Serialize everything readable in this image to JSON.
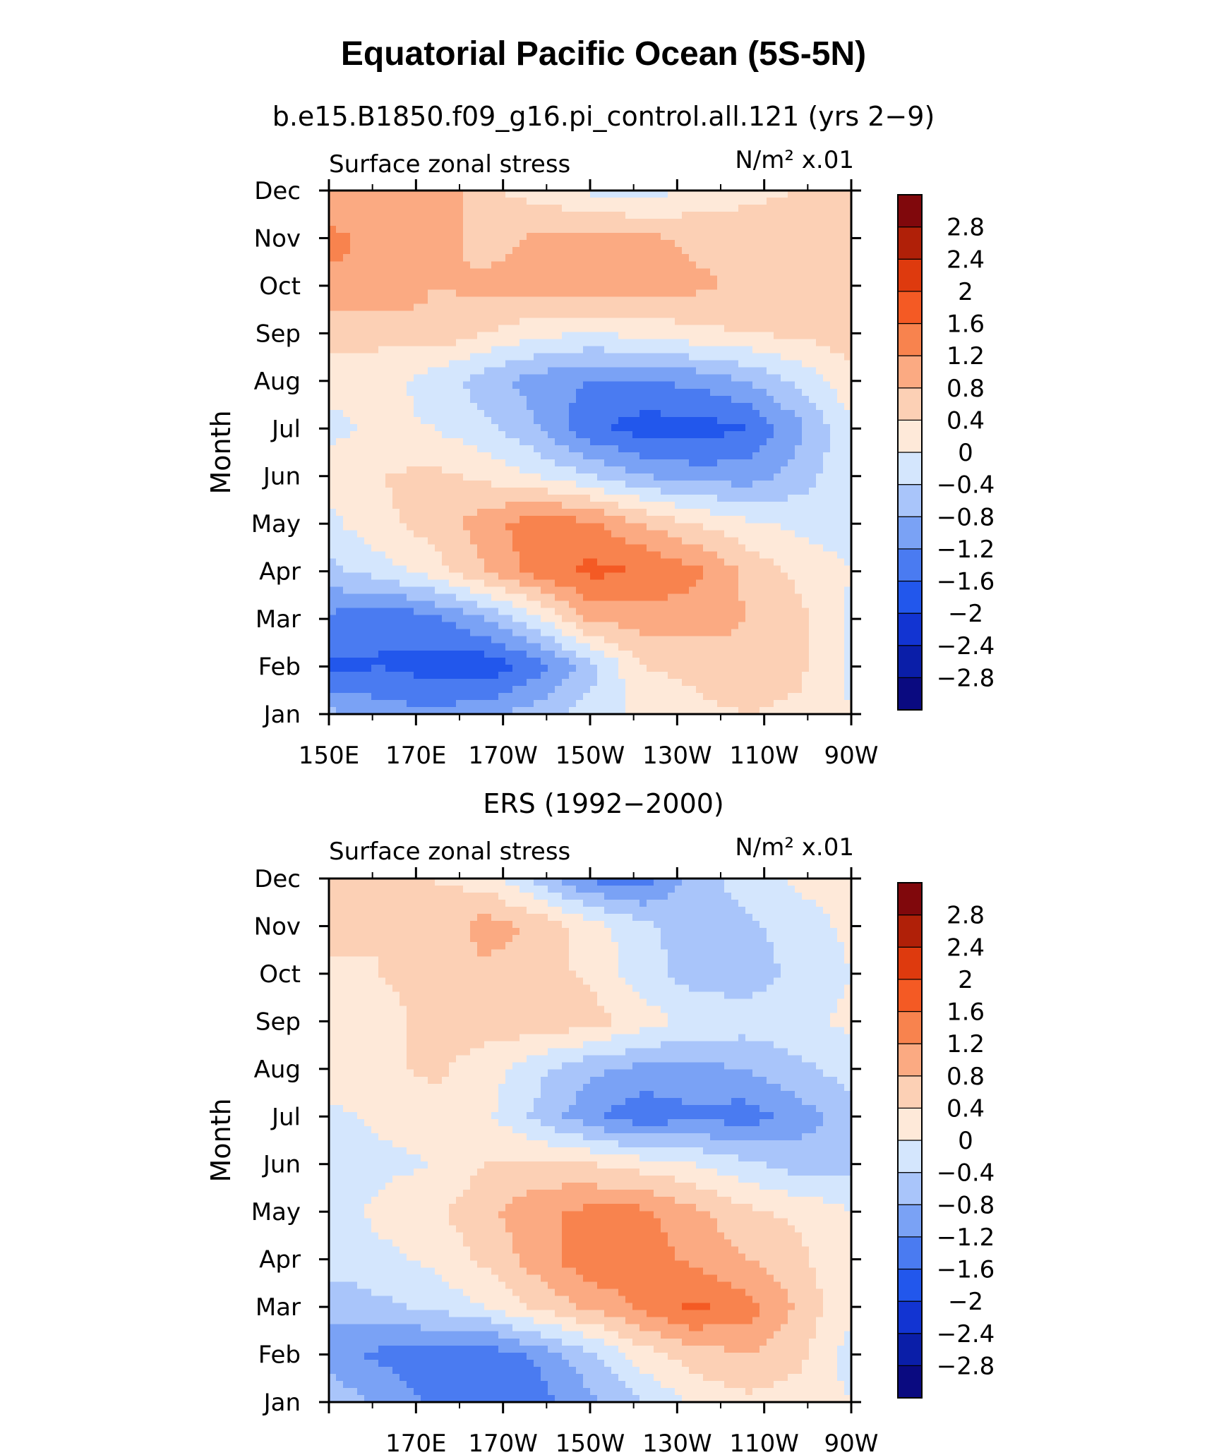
{
  "figure": {
    "title": "Equatorial Pacific Ocean (5S-5N)"
  },
  "colorbar": {
    "colors": [
      "#0a0a80",
      "#0a1ea8",
      "#1234d2",
      "#2257ec",
      "#4a7bf1",
      "#7aa2f5",
      "#a9c5fa",
      "#d4e6fd",
      "#fee9d9",
      "#fcd0b5",
      "#fbaa82",
      "#f8834e",
      "#f45a24",
      "#de3a0e",
      "#b02008",
      "#80080c"
    ],
    "levels": [
      "-2.8",
      "-2.4",
      "-2",
      "-1.6",
      "-1.2",
      "-0.8",
      "-0.4",
      "0",
      "0.4",
      "0.8",
      "1.2",
      "1.6",
      "2",
      "2.4",
      "2.8"
    ]
  },
  "chart_data": [
    {
      "type": "heatmap",
      "title": "b.e15.B1850.f09_g16.pi_control.all.121 (yrs 2−9)",
      "left_label": "Surface zonal stress",
      "right_label": "N/m² x.01",
      "ylabel": "Month",
      "y_categories": [
        "Jan",
        "Feb",
        "Mar",
        "Apr",
        "May",
        "Jun",
        "Jul",
        "Aug",
        "Sep",
        "Oct",
        "Nov",
        "Dec"
      ],
      "x_tick_labels": [
        "150E",
        "170E",
        "170W",
        "150W",
        "130W",
        "110W",
        "90W"
      ],
      "x_tick_values": [
        150,
        170,
        190,
        210,
        230,
        250,
        270
      ],
      "xlim": [
        150,
        270
      ],
      "levels": [
        -2.8,
        -2.4,
        -2,
        -1.6,
        -1.2,
        -0.8,
        -0.4,
        0,
        0.4,
        0.8,
        1.2,
        1.6,
        2,
        2.4,
        2.8
      ],
      "x": [
        150,
        162,
        174,
        186,
        198,
        210,
        222,
        234,
        246,
        258,
        270
      ],
      "z": [
        [
          -0.7,
          -1.0,
          -1.1,
          -0.9,
          -0.6,
          -0.2,
          0.1,
          0.3,
          0.4,
          0.3,
          0.0
        ],
        [
          -1.7,
          -1.6,
          -1.8,
          -1.9,
          -1.4,
          -0.6,
          0.4,
          0.5,
          0.7,
          0.5,
          -0.1
        ],
        [
          -1.3,
          -1.6,
          -1.3,
          -0.8,
          -0.1,
          0.9,
          1.0,
          1.0,
          0.8,
          0.5,
          -0.1
        ],
        [
          -0.5,
          -0.2,
          0.2,
          0.8,
          1.4,
          1.7,
          1.6,
          1.3,
          0.7,
          0.3,
          0.0
        ],
        [
          -0.1,
          0.3,
          0.6,
          1.0,
          1.5,
          1.3,
          0.8,
          0.4,
          0.1,
          -0.1,
          -0.2
        ],
        [
          0.1,
          0.4,
          0.5,
          0.3,
          0.0,
          -0.4,
          -0.8,
          -1.0,
          -1.0,
          -0.6,
          -0.1
        ],
        [
          -0.1,
          0.1,
          0.0,
          -0.3,
          -0.8,
          -1.5,
          -1.8,
          -1.8,
          -1.6,
          -0.9,
          -0.1
        ],
        [
          0.1,
          0.2,
          -0.2,
          -0.6,
          -1.0,
          -1.2,
          -1.2,
          -1.1,
          -0.8,
          -0.3,
          0.3
        ],
        [
          0.6,
          0.5,
          0.7,
          0.4,
          0.1,
          0.0,
          0.1,
          0.3,
          0.4,
          0.5,
          0.6
        ],
        [
          1.1,
          1.2,
          0.8,
          0.9,
          1.0,
          1.1,
          1.0,
          0.9,
          0.7,
          0.6,
          0.6
        ],
        [
          1.3,
          1.1,
          1.0,
          0.6,
          0.9,
          1.0,
          0.9,
          0.7,
          0.6,
          0.6,
          0.6
        ],
        [
          0.9,
          1.0,
          1.2,
          0.5,
          0.2,
          -0.1,
          -0.2,
          0.1,
          0.3,
          0.4,
          0.5
        ]
      ]
    },
    {
      "type": "heatmap",
      "title": "ERS (1992−2000)",
      "left_label": "Surface zonal stress",
      "right_label": "N/m² x.01",
      "ylabel": "Month",
      "y_categories": [
        "Jan",
        "Feb",
        "Mar",
        "Apr",
        "May",
        "Jun",
        "Jul",
        "Aug",
        "Sep",
        "Oct",
        "Nov",
        "Dec"
      ],
      "x_tick_labels": [
        "170E",
        "170W",
        "150W",
        "130W",
        "110W",
        "90W"
      ],
      "x_tick_values": [
        170,
        190,
        210,
        230,
        250,
        270
      ],
      "xlim": [
        150,
        270
      ],
      "levels": [
        -2.8,
        -2.4,
        -2,
        -1.6,
        -1.2,
        -0.8,
        -0.4,
        0,
        0.4,
        0.8,
        1.2,
        1.6,
        2,
        2.4,
        2.8
      ],
      "x": [
        150,
        162,
        174,
        186,
        198,
        210,
        222,
        234,
        246,
        258,
        270
      ],
      "z": [
        [
          -0.5,
          -0.9,
          -1.3,
          -1.5,
          -1.4,
          -0.9,
          -0.4,
          0.1,
          0.3,
          0.2,
          0.0
        ],
        [
          -1.0,
          -1.3,
          -1.4,
          -1.5,
          -1.1,
          -0.5,
          0.2,
          0.6,
          0.8,
          0.5,
          -0.2
        ],
        [
          -0.7,
          -0.5,
          -0.3,
          0.0,
          0.5,
          0.9,
          1.3,
          1.7,
          1.4,
          0.7,
          0.1
        ],
        [
          -0.2,
          -0.1,
          0.1,
          0.5,
          1.0,
          1.5,
          1.4,
          1.1,
          0.8,
          0.5,
          0.0
        ],
        [
          -0.2,
          0.1,
          0.3,
          0.7,
          1.1,
          1.3,
          1.3,
          0.9,
          0.5,
          0.3,
          0.0
        ],
        [
          -0.3,
          -0.1,
          0.0,
          0.4,
          0.5,
          0.4,
          0.2,
          0.0,
          -0.3,
          -0.6,
          -0.5
        ],
        [
          -0.1,
          0.1,
          0.2,
          0.1,
          -0.5,
          -1.1,
          -1.5,
          -1.3,
          -1.4,
          -1.0,
          -0.6
        ],
        [
          0.2,
          0.3,
          0.5,
          0.2,
          -0.3,
          -0.7,
          -0.9,
          -0.9,
          -0.8,
          -0.5,
          -0.2
        ],
        [
          0.4,
          0.3,
          0.5,
          0.6,
          0.7,
          0.6,
          0.2,
          -0.1,
          -0.2,
          -0.1,
          0.1
        ],
        [
          0.3,
          0.4,
          0.5,
          0.7,
          0.6,
          0.3,
          -0.2,
          -0.6,
          -0.6,
          -0.3,
          0.0
        ],
        [
          0.6,
          0.4,
          0.5,
          1.0,
          0.7,
          0.2,
          -0.3,
          -0.6,
          -0.5,
          -0.2,
          0.1
        ],
        [
          0.6,
          0.5,
          0.4,
          0.2,
          -0.5,
          -1.3,
          -1.4,
          -0.6,
          -0.2,
          0.1,
          0.2
        ]
      ]
    }
  ]
}
